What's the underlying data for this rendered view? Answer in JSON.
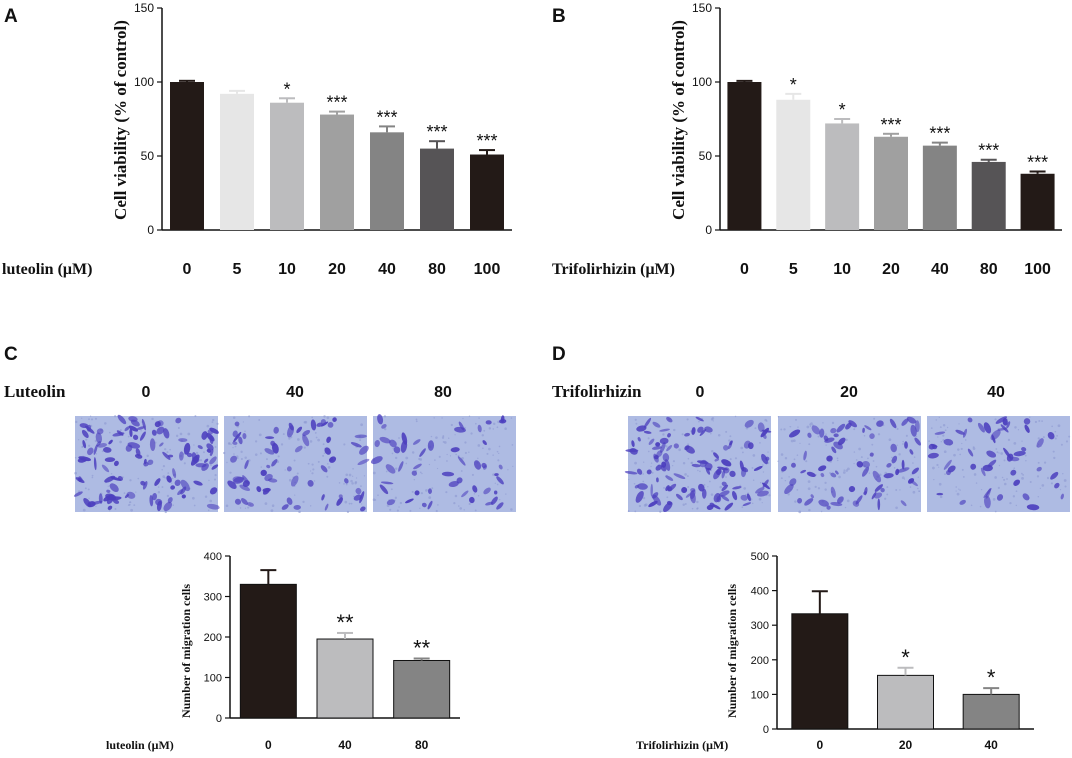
{
  "panels": {
    "A": "A",
    "B": "B",
    "C": "C",
    "D": "D"
  },
  "chart_data": [
    {
      "id": "A",
      "type": "bar",
      "ylabel": "Cell viability (% of control)",
      "xlabel": "luteolin (μM)",
      "ylim": [
        0,
        150
      ],
      "yticks": [
        "0",
        "50",
        "100",
        "150"
      ],
      "categories": [
        "0",
        "5",
        "10",
        "20",
        "40",
        "80",
        "100"
      ],
      "values": [
        100,
        92,
        86,
        78,
        66,
        55,
        51
      ],
      "errors": [
        0.8,
        2,
        3,
        2,
        4,
        5,
        3
      ],
      "significance": [
        "",
        "",
        "*",
        "***",
        "***",
        "***",
        "***"
      ],
      "colors": [
        "#231a17",
        "#e6e6e6",
        "#bcbcbe",
        "#a0a0a0",
        "#848484",
        "#565456",
        "#231a17"
      ]
    },
    {
      "id": "B",
      "type": "bar",
      "ylabel": "Cell viability (% of control)",
      "xlabel": "Trifolirhizin (μM)",
      "ylim": [
        0,
        150
      ],
      "yticks": [
        "0",
        "50",
        "100",
        "150"
      ],
      "categories": [
        "0",
        "5",
        "10",
        "20",
        "40",
        "80",
        "100"
      ],
      "values": [
        100,
        88,
        72,
        63,
        57,
        46,
        38
      ],
      "errors": [
        0.8,
        4,
        3,
        2,
        2,
        1.5,
        1.5
      ],
      "significance": [
        "",
        "*",
        "*",
        "***",
        "***",
        "***",
        "***"
      ],
      "colors": [
        "#231a17",
        "#e6e6e6",
        "#bcbcbe",
        "#a0a0a0",
        "#848484",
        "#565456",
        "#231a17"
      ]
    },
    {
      "id": "C",
      "type": "bar",
      "ylabel": "Number of migration cells",
      "xlabel": "luteolin (μM)",
      "ylim": [
        0,
        400
      ],
      "yticks": [
        "0",
        "100",
        "200",
        "300",
        "400"
      ],
      "categories": [
        "0",
        "40",
        "80"
      ],
      "values": [
        330,
        195,
        142
      ],
      "errors": [
        35,
        15,
        5
      ],
      "significance": [
        "",
        "**",
        "**"
      ],
      "colors": [
        "#231a17",
        "#bcbcbe",
        "#848484"
      ]
    },
    {
      "id": "D",
      "type": "bar",
      "ylabel": "Number of migration cells",
      "xlabel": "Trifolirhizin (μM)",
      "ylim": [
        0,
        500
      ],
      "yticks": [
        "0",
        "100",
        "200",
        "300",
        "400",
        "500"
      ],
      "categories": [
        "0",
        "20",
        "40"
      ],
      "values": [
        333,
        155,
        100
      ],
      "errors": [
        65,
        22,
        18
      ],
      "significance": [
        "",
        "*",
        "*"
      ],
      "colors": [
        "#231a17",
        "#bcbcbe",
        "#848484"
      ]
    }
  ],
  "micrographs": {
    "C": {
      "drug": "Luteolin",
      "doses": [
        "0",
        "40",
        "80"
      ],
      "density": [
        1.0,
        0.6,
        0.45
      ]
    },
    "D": {
      "drug": "Trifolirhizin",
      "doses": [
        "0",
        "20",
        "40"
      ],
      "density": [
        1.0,
        0.65,
        0.45
      ]
    }
  },
  "image_colors": {
    "background": "#aebbe3",
    "cell": "#4c3fbe"
  }
}
